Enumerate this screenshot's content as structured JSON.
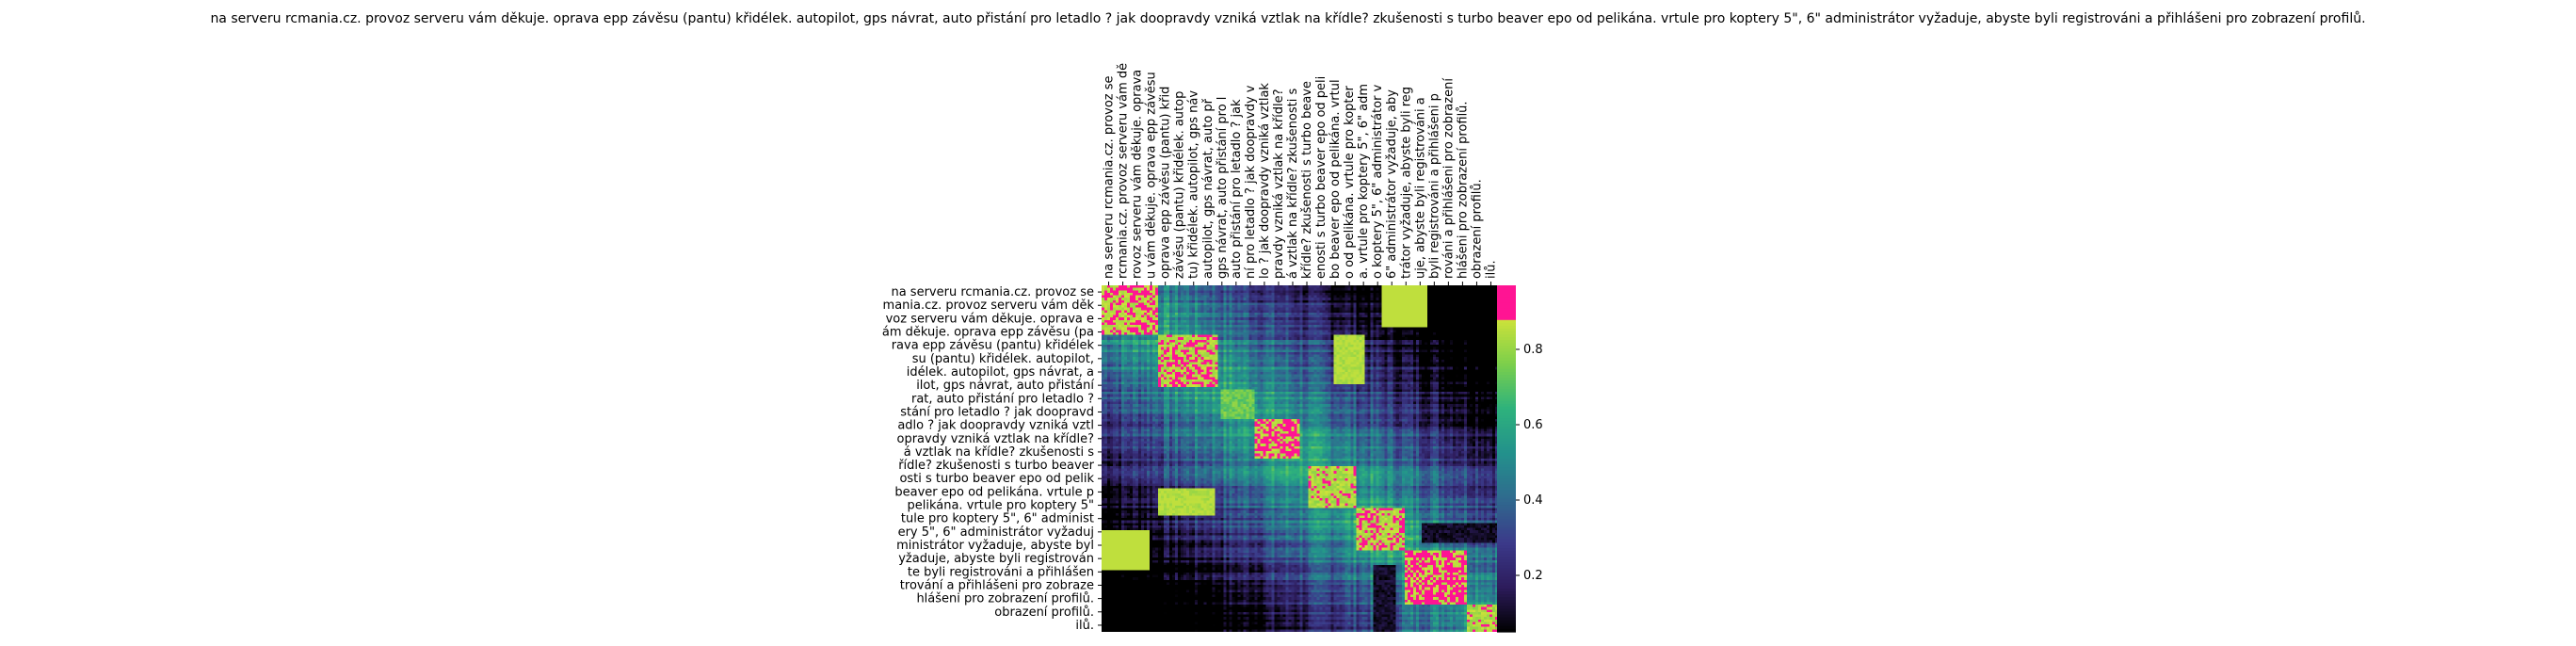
{
  "chart_data": {
    "type": "heatmap",
    "title": "na serveru rcmania.cz. provoz serveru vám děkuje. oprava epp závěsu (pantu) křidélek. autopilot, gps návrat, auto přistání pro letadlo ? jak doopravdy vzniká vztlak na křídle? zkušenosti s turbo beaver epo od pelikána. vrtule pro koptery 5\", 6\" administrátor vyžaduje, abyste byli registrováni a přihlášeni pro zobrazení profilů.",
    "xlabel": "",
    "ylabel": "",
    "x_tick_labels": [
      "na serveru rcmania.cz. provoz se",
      "rcmania.cz. provoz serveru vám dě",
      "rovoz serveru vám děkuje. oprava",
      "u vám děkuje. oprava epp závěsu",
      "oprava epp závěsu (pantu) křid",
      "závěsu (pantu) křidélek. autop",
      "tu) křidélek. autopilot, gps náv",
      "autopilot, gps návrat, auto př",
      "gps návrat, auto přistání pro l",
      "auto přistání pro letadlo ? jak",
      "ní pro letadlo ? jak doopravdy v",
      "lo ? jak doopravdy vzniká vztlak",
      "pravdy vzniká vztlak na křídle?",
      "á vztlak na křídle? zkušenosti s",
      "křídle? zkušenosti s turbo beave",
      "enosti s turbo beaver epo od peli",
      "bo beaver epo od pelikána. vrtul",
      "o od pelikána. vrtule pro kopter",
      "a. vrtule pro koptery 5\", 6\" adm",
      "o koptery 5\", 6\" administrátor v",
      "6\" administrátor vyžaduje, aby",
      "trátor vyžaduje, abyste byli reg",
      "uje, abyste byli registrováni a",
      "byli registrováni a přihlášeni p",
      "rováni a přihlášeni pro zobrazení",
      "hlášeni pro zobrazení profilů.",
      "obrazení profilů.",
      "ilů."
    ],
    "y_tick_labels": [
      "na serveru rcmania.cz. provoz se",
      "mania.cz. provoz serveru vám děk",
      "voz serveru vám děkuje. oprava e",
      "ám děkuje. oprava epp závěsu (pa",
      "rava epp závěsu (pantu) křidélek",
      "su (pantu) křidélek. autopilot,",
      "idélek. autopilot, gps návrat, a",
      "ilot, gps návrat, auto přistání",
      "rat, auto přistání pro letadlo ?",
      "stání pro letadlo ? jak doopravd",
      "adlo ? jak doopravdy vzniká vztl",
      "opravdy vzniká vztlak na křídle?",
      "á vztlak na křídle? zkušenosti s",
      "řídle? zkušenosti s turbo beaver",
      "osti s turbo beaver epo od pelik",
      "beaver epo od pelikána. vrtule p",
      "pelikána. vrtule pro koptery 5\"",
      "tule pro koptery 5\", 6\" administ",
      "ery 5\", 6\" administrátor vyžaduj",
      "ministrátor vyžaduje, abyste byl",
      "yžaduje, abyste byli registrován",
      "te byli registrováni a přihlášen",
      "trování a přihlášeni pro zobraze",
      "hlášeni pro zobrazení profilů.",
      "obrazení profilů.",
      "ilů."
    ],
    "colorbar": {
      "ticks": [
        0.2,
        0.4,
        0.6,
        0.8
      ],
      "tick_labels": [
        "0.2",
        "0.4",
        "0.6",
        "0.8"
      ],
      "range": [
        0.05,
        0.97
      ],
      "colormap": [
        "#000000",
        "#2d1c5c",
        "#3b3a8a",
        "#2f6b8e",
        "#23918c",
        "#2eb27c",
        "#7ccf4b",
        "#cde23a",
        "#ff1493"
      ]
    },
    "matrix_size": [
      140,
      140
    ],
    "blocks": [
      {
        "start": 0.0,
        "end": 0.14,
        "level": 0.93
      },
      {
        "start": 0.14,
        "end": 0.29,
        "level": 0.92
      },
      {
        "start": 0.3,
        "end": 0.38,
        "level": 0.8
      },
      {
        "start": 0.38,
        "end": 0.5,
        "level": 0.95
      },
      {
        "start": 0.52,
        "end": 0.64,
        "level": 0.9
      },
      {
        "start": 0.64,
        "end": 0.76,
        "level": 0.92
      },
      {
        "start": 0.76,
        "end": 0.92,
        "level": 0.95
      },
      {
        "start": 0.92,
        "end": 1.0,
        "level": 0.9
      }
    ],
    "grid": false
  }
}
